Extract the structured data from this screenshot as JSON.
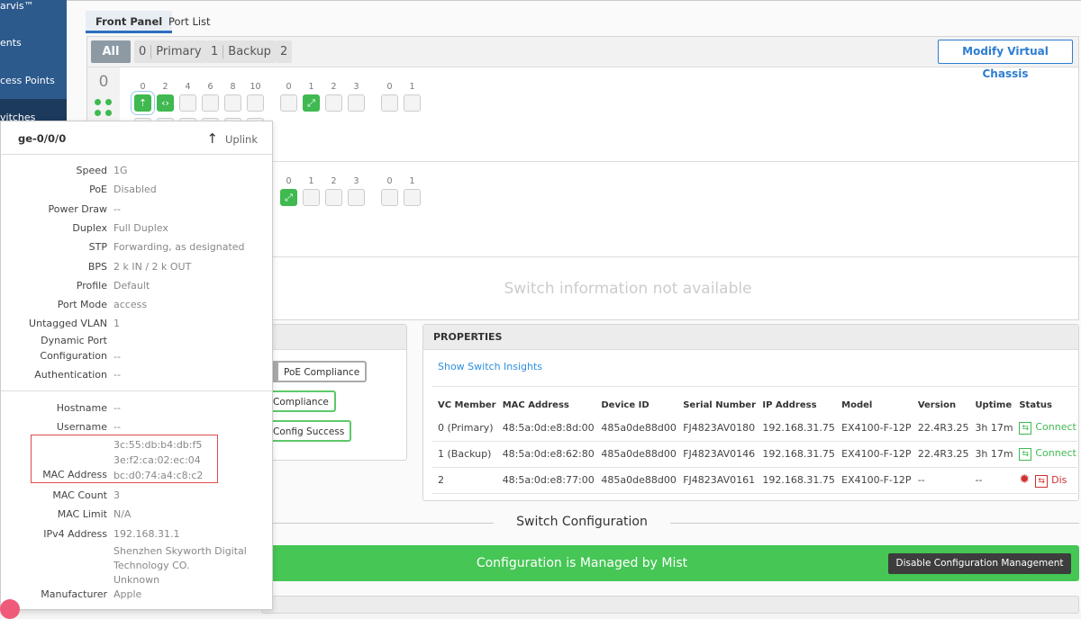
{
  "sidebar": {
    "items": [
      {
        "label": "arvis™"
      },
      {
        "label": "ents"
      },
      {
        "label": "cess Points"
      },
      {
        "label": "vitches",
        "selected": true
      }
    ]
  },
  "tabs": [
    {
      "label": "Front Panel",
      "active": true
    },
    {
      "label": "Port List"
    }
  ],
  "filter": {
    "all": "All",
    "members": [
      {
        "num": "0",
        "label": "Primary"
      },
      {
        "num": "1",
        "label": "Backup"
      },
      {
        "num": "2",
        "label": ""
      }
    ]
  },
  "modify_button": "Modify Virtual Chassis",
  "members": [
    {
      "id": "0",
      "groups": [
        {
          "labels": [
            "0",
            "2",
            "4",
            "6",
            "8",
            "10"
          ]
        },
        {
          "labels": [
            "0",
            "1",
            "2",
            "3"
          ]
        },
        {
          "labels": [
            "0",
            "1"
          ]
        }
      ]
    },
    {
      "groups": [
        {
          "labels": [
            "0",
            "1",
            "2",
            "3"
          ]
        },
        {
          "labels": [
            "0",
            "1"
          ]
        }
      ]
    }
  ],
  "no_info": "Switch information not available",
  "compliance_buttons": [
    "PoE Compliance",
    "Compliance",
    "Config Success"
  ],
  "properties": {
    "title": "PROPERTIES",
    "insights_link": "Show Switch Insights",
    "columns": [
      "VC Member",
      "MAC Address",
      "Device ID",
      "Serial Number",
      "IP Address",
      "Model",
      "Version",
      "Uptime",
      "Status"
    ],
    "rows": [
      [
        "0 (Primary)",
        "48:5a:0d:e8:8d:00",
        "485a0de88d00",
        "FJ4823AV0180",
        "192.168.31.75",
        "EX4100-F-12P",
        "22.4R3.25",
        "3h 17m",
        "Connect"
      ],
      [
        "1 (Backup)",
        "48:5a:0d:e8:62:80",
        "485a0de88d00",
        "FJ4823AV0146",
        "192.168.31.75",
        "EX4100-F-12P",
        "22.4R3.25",
        "3h 17m",
        "Connect"
      ],
      [
        "2",
        "48:5a:0d:e8:77:00",
        "485a0de88d00",
        "FJ4823AV0161",
        "192.168.31.75",
        "EX4100-F-12P",
        "--",
        "--",
        "Dis"
      ]
    ]
  },
  "switch_config": {
    "heading": "Switch Configuration",
    "banner": "Configuration is Managed by Mist",
    "disable_button": "Disable Configuration Management",
    "banner_color": "#45c655"
  },
  "popup": {
    "port": "ge-0/0/0",
    "role": "Uplink",
    "rows1": [
      [
        "Speed",
        "1G"
      ],
      [
        "PoE",
        "Disabled"
      ],
      [
        "Power Draw",
        "--"
      ],
      [
        "Duplex",
        "Full Duplex"
      ],
      [
        "STP",
        "Forwarding, as designated"
      ],
      [
        "BPS",
        "2 k IN / 2 k OUT"
      ],
      [
        "Profile",
        "Default"
      ],
      [
        "Port Mode",
        "access"
      ],
      [
        "Untagged VLAN",
        "1"
      ]
    ],
    "dyn_label1": "Dynamic Port",
    "dyn_label2": "Configuration",
    "dyn_value": "--",
    "auth_label": "Authentication",
    "auth_value": "--",
    "hostname_label": "Hostname",
    "hostname": "--",
    "username_label": "Username",
    "username": "--",
    "mac_label": "MAC Address",
    "macs": [
      "3c:55:db:b4:db:f5",
      "3e:f2:ca:02:ec:04",
      "bc:d0:74:a4:c8:c2"
    ],
    "rows2": [
      [
        "MAC Count",
        "3"
      ],
      [
        "MAC Limit",
        "N/A"
      ],
      [
        "IPv4 Address",
        "192.168.31.1"
      ]
    ],
    "manufacturer_label": "Manufacturer",
    "manufacturers": [
      "Shenzhen Skyworth Digital",
      "Technology CO.",
      "Unknown",
      "Apple"
    ]
  }
}
